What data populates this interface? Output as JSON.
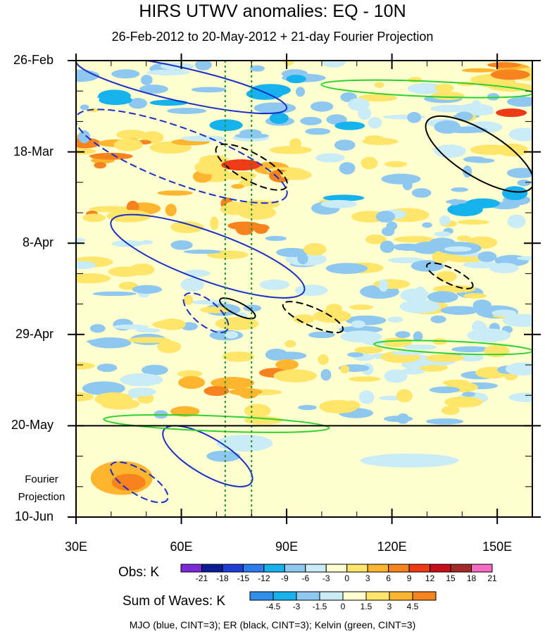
{
  "chart_data": {
    "type": "heatmap",
    "title": "HIRS UTWV anomalies: EQ - 10N",
    "subtitle": "26-Feb-2012 to 20-May-2012 + 21-day Fourier Projection",
    "x_axis": {
      "range": [
        30,
        160
      ],
      "ticks": [
        30,
        60,
        90,
        120,
        150
      ],
      "tick_labels": [
        "30E",
        "60E",
        "90E",
        "120E",
        "150E"
      ]
    },
    "y_axis": {
      "start": "26-Feb",
      "end": "10-Jun",
      "days": [
        0,
        21,
        42,
        63,
        84,
        105
      ],
      "tick_labels": [
        "26-Feb",
        "18-Mar",
        "8-Apr",
        "29-Apr",
        "20-May",
        "10-Jun"
      ]
    },
    "reference_lines": [
      {
        "lon": 72.5,
        "style": "dotted",
        "color": "#1f8f2f"
      },
      {
        "lon": 80,
        "style": "dotted",
        "color": "#1f8f2f"
      }
    ],
    "forecast_start": "20-May",
    "fourier_label": [
      "Fourier",
      "Projection"
    ],
    "obs_colorbar": {
      "label": "Obs: K",
      "levels": [
        "-21",
        "-18",
        "-15",
        "-12",
        "-9",
        "-6",
        "-3",
        "0",
        "3",
        "6",
        "9",
        "12",
        "15",
        "18",
        "21"
      ],
      "colors": [
        "#7d2ad9",
        "#0d1b96",
        "#1f3ed6",
        "#2e7bec",
        "#16b2ee",
        "#8ec7ef",
        "#c9ecf6",
        "#ffffd0",
        "#ffe56a",
        "#ffb52e",
        "#f6831e",
        "#ef3a18",
        "#c9101a",
        "#a42a2a",
        "#f56cc0"
      ]
    },
    "waves_colorbar": {
      "label": "Sum of Waves: K",
      "levels": [
        "-4.5",
        "-3",
        "-1.5",
        "0",
        "1.5",
        "3",
        "4.5"
      ],
      "colors": [
        "#2e90ec",
        "#16b2ee",
        "#8ec7ef",
        "#c9ecf6",
        "#ffffd0",
        "#ffe56a",
        "#ffb52e",
        "#f6831e"
      ]
    },
    "legend": "MJO (blue, CINT=3); ER (black, CINT=3); Kelvin (green, CINT=3)",
    "series": [
      {
        "name": "MJO",
        "color": "#1a2fc8"
      },
      {
        "name": "ER",
        "color": "#000000"
      },
      {
        "name": "Kelvin",
        "color": "#2ed12e"
      }
    ],
    "features": [
      {
        "kind": "mjo-positive",
        "lon": [
          30,
          90
        ],
        "day": [
          0,
          11
        ]
      },
      {
        "kind": "mjo-negative",
        "lon": [
          30,
          90
        ],
        "day": [
          13,
          31
        ]
      },
      {
        "kind": "mjo-positive",
        "lon": [
          40,
          95
        ],
        "day": [
          37,
          53
        ]
      },
      {
        "kind": "mjo-negative",
        "lon": [
          61,
          73
        ],
        "day": [
          54,
          62
        ]
      },
      {
        "kind": "mjo-positive",
        "lon": [
          55,
          80
        ],
        "day": [
          85,
          97
        ]
      },
      {
        "kind": "mjo-negative",
        "lon": [
          40,
          56
        ],
        "day": [
          93,
          101
        ]
      },
      {
        "kind": "er-negative",
        "lon": [
          70,
          90
        ],
        "day": [
          20,
          29
        ]
      },
      {
        "kind": "er-positive",
        "lon": [
          130,
          160
        ],
        "day": [
          14,
          29
        ]
      },
      {
        "kind": "er-negative",
        "lon": [
          130,
          143
        ],
        "day": [
          47,
          52
        ]
      },
      {
        "kind": "er-negative",
        "lon": [
          89,
          106
        ],
        "day": [
          56,
          62
        ]
      },
      {
        "kind": "er-positive",
        "lon": [
          71,
          81
        ],
        "day": [
          55,
          59
        ]
      },
      {
        "kind": "kelvin-positive",
        "lon": [
          100,
          160
        ],
        "day": [
          4,
          9
        ]
      },
      {
        "kind": "kelvin-positive",
        "lon": [
          115,
          160
        ],
        "day": [
          64,
          68
        ]
      },
      {
        "kind": "kelvin-positive",
        "lon": [
          38,
          102
        ],
        "day": [
          81,
          86
        ]
      }
    ]
  }
}
